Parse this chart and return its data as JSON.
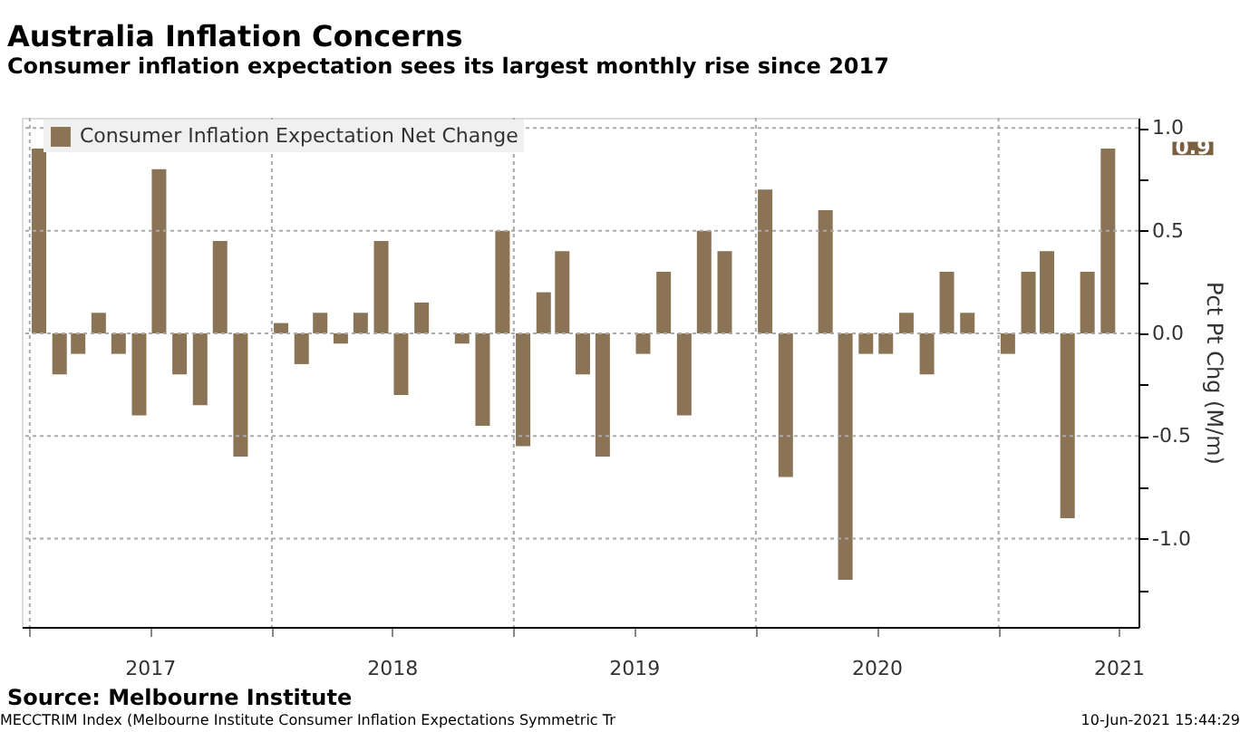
{
  "chart_data": {
    "type": "bar",
    "title": "Australia Inflation Concerns",
    "subtitle": "Consumer inflation expectation sees its largest monthly rise since 2017",
    "x": [
      "2017-01-15",
      "2017-02-15",
      "2017-03-15",
      "2017-04-15",
      "2017-05-15",
      "2017-06-15",
      "2017-07-15",
      "2017-08-15",
      "2017-09-15",
      "2017-10-15",
      "2017-11-15",
      "2017-12-15",
      "2018-01-15",
      "2018-02-15",
      "2018-03-15",
      "2018-04-15",
      "2018-05-15",
      "2018-06-15",
      "2018-07-15",
      "2018-08-15",
      "2018-09-15",
      "2018-10-15",
      "2018-11-15",
      "2018-12-15",
      "2019-01-15",
      "2019-02-15",
      "2019-03-15",
      "2019-04-15",
      "2019-05-15",
      "2019-06-15",
      "2019-07-15",
      "2019-08-15",
      "2019-09-15",
      "2019-10-15",
      "2019-11-15",
      "2019-12-15",
      "2020-01-15",
      "2020-02-15",
      "2020-03-15",
      "2020-04-15",
      "2020-05-15",
      "2020-06-15",
      "2020-07-15",
      "2020-08-15",
      "2020-09-15",
      "2020-10-15",
      "2020-11-15",
      "2020-12-15",
      "2021-01-15",
      "2021-02-15",
      "2021-03-15",
      "2021-04-15",
      "2021-05-15",
      "2021-06-15"
    ],
    "series": [
      {
        "name": "Consumer Inflation Expectation Net Change",
        "color": "#8b7355",
        "values": [
          0.9,
          -0.2,
          -0.1,
          0.1,
          -0.1,
          -0.4,
          0.8,
          -0.2,
          -0.35,
          0.45,
          -0.6,
          0,
          0.05,
          -0.15,
          0.1,
          -0.05,
          0.1,
          0.45,
          -0.3,
          0.15,
          0,
          -0.05,
          -0.45,
          0.5,
          -0.55,
          0.2,
          0.4,
          -0.2,
          -0.6,
          0,
          -0.1,
          0.3,
          -0.4,
          0.5,
          0.4,
          0,
          0.7,
          -0.7,
          0,
          0.6,
          -1.2,
          -0.1,
          -0.1,
          0.1,
          -0.2,
          0.3,
          0.1,
          0,
          -0.1,
          0.3,
          0.4,
          -0.9,
          0.3,
          0.9
        ]
      }
    ],
    "xlim": [
      "2016-12-20",
      "2021-07-31"
    ],
    "xticks": [
      {
        "value": "2017-01-01",
        "label": null
      },
      {
        "value": "2017-07-01",
        "label": "2017"
      },
      {
        "value": "2018-01-01",
        "label": null
      },
      {
        "value": "2018-07-01",
        "label": "2018"
      },
      {
        "value": "2019-01-01",
        "label": null
      },
      {
        "value": "2019-07-01",
        "label": "2019"
      },
      {
        "value": "2020-01-01",
        "label": null
      },
      {
        "value": "2020-07-01",
        "label": "2020"
      },
      {
        "value": "2021-01-01",
        "label": null
      },
      {
        "value": "2021-07-01",
        "label": "2021"
      }
    ],
    "ylim": [
      -1.43,
      1.05
    ],
    "yticks": [
      {
        "value": 1,
        "label": "1.0"
      },
      {
        "value": 0.75,
        "label": null
      },
      {
        "value": 0.5,
        "label": "0.5"
      },
      {
        "value": 0.25,
        "label": null
      },
      {
        "value": 0,
        "label": "0.0"
      },
      {
        "value": -0.25,
        "label": null
      },
      {
        "value": -0.5,
        "label": "-0.5"
      },
      {
        "value": -0.75,
        "label": null
      },
      {
        "value": -1,
        "label": "-1.0"
      },
      {
        "value": -1.25,
        "label": null
      }
    ],
    "ylabel": "Pct Pt Chg (M/m)",
    "grid": true,
    "legend": "top left",
    "annotations": [
      "0.9",
      "Source: Melbourne Institute",
      "MECCTRIM Index (Melbourne Institute Consumer Inflation Expectations Symmetric Tr",
      "10-Jun-2021 15:44:29"
    ]
  }
}
